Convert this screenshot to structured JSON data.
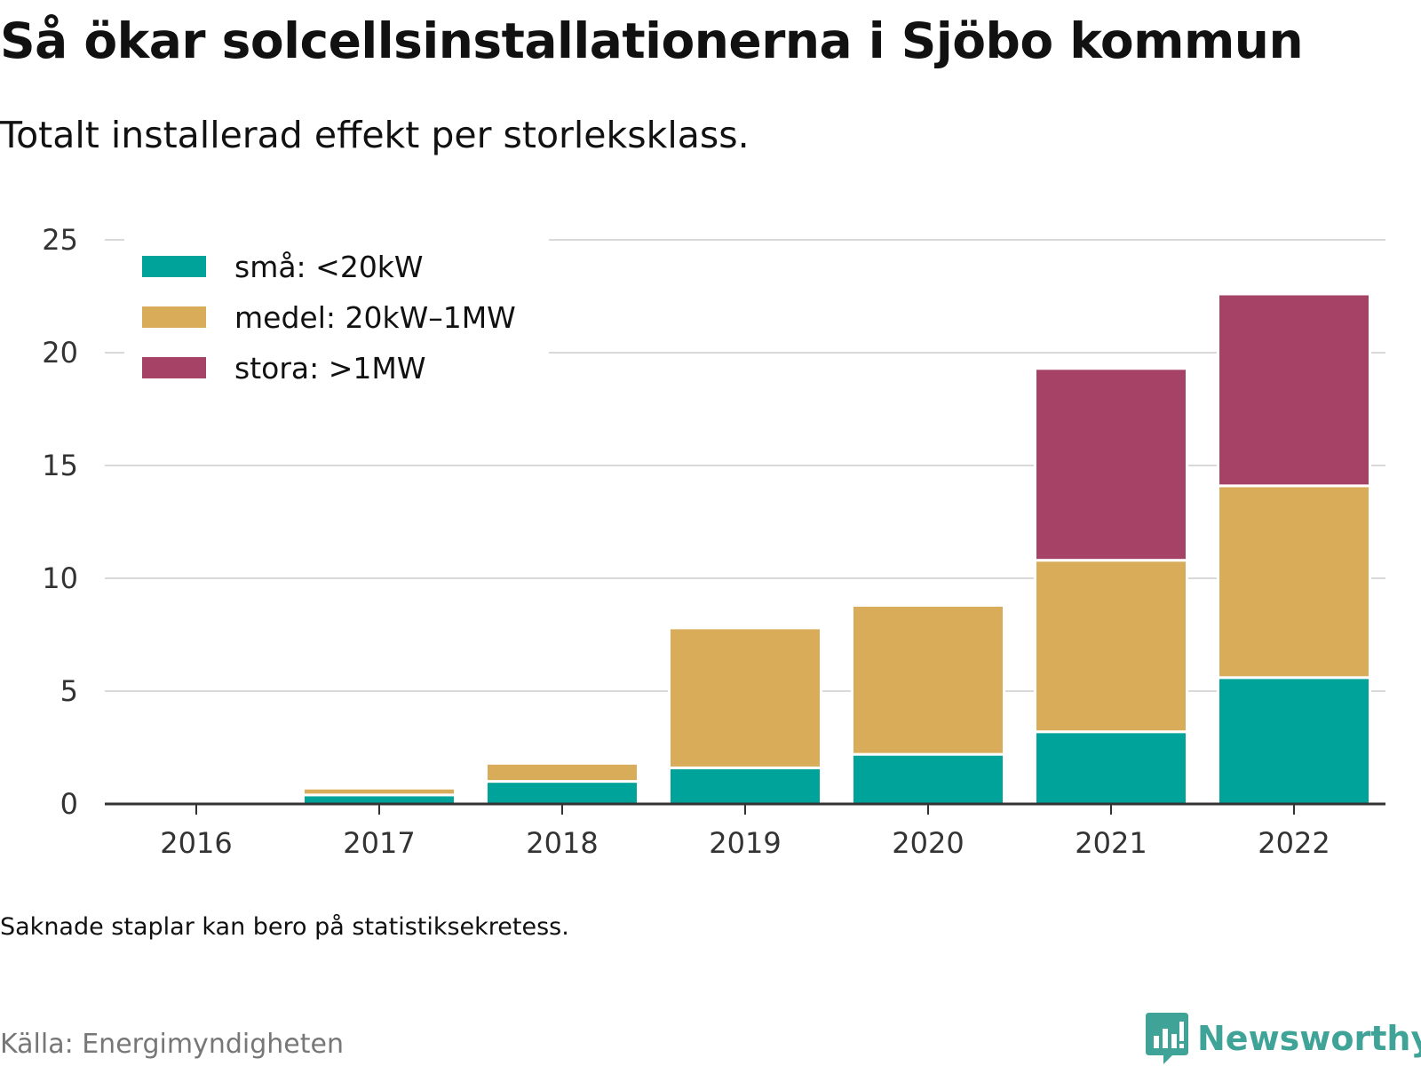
{
  "chart_data": {
    "type": "bar",
    "stacked": true,
    "title": "Så ökar solcellsinstallationerna i Sjöbo kommun",
    "subtitle": "Totalt installerad effekt per storleksklass.",
    "xlabel": "",
    "ylabel": "",
    "categories": [
      "2016",
      "2017",
      "2018",
      "2019",
      "2020",
      "2021",
      "2022"
    ],
    "series": [
      {
        "name": "små: <20kW",
        "color": "#00a39a",
        "values": [
          0.1,
          0.4,
          1.0,
          1.6,
          2.2,
          3.2,
          5.6
        ]
      },
      {
        "name": "medel: 20kW–1MW",
        "color": "#d9ac5a",
        "values": [
          0.0,
          0.3,
          0.8,
          6.2,
          6.6,
          7.6,
          8.5
        ]
      },
      {
        "name": "stora: >1MW",
        "color": "#a64266",
        "values": [
          0.0,
          0.0,
          0.0,
          0.0,
          0.0,
          8.5,
          8.5
        ]
      }
    ],
    "ylim": [
      0,
      25
    ],
    "yticks": [
      0,
      5,
      10,
      15,
      20,
      25
    ],
    "grid": true,
    "legend_position": "top-left"
  },
  "footer": {
    "note": "Saknade staplar kan bero på statistiksekretess.",
    "source": "Källa: Energimyndigheten",
    "logo_text": "Newsworthy",
    "logo_icon": "bar-chart-speech-bubble-icon",
    "logo_color": "#3fa397"
  }
}
